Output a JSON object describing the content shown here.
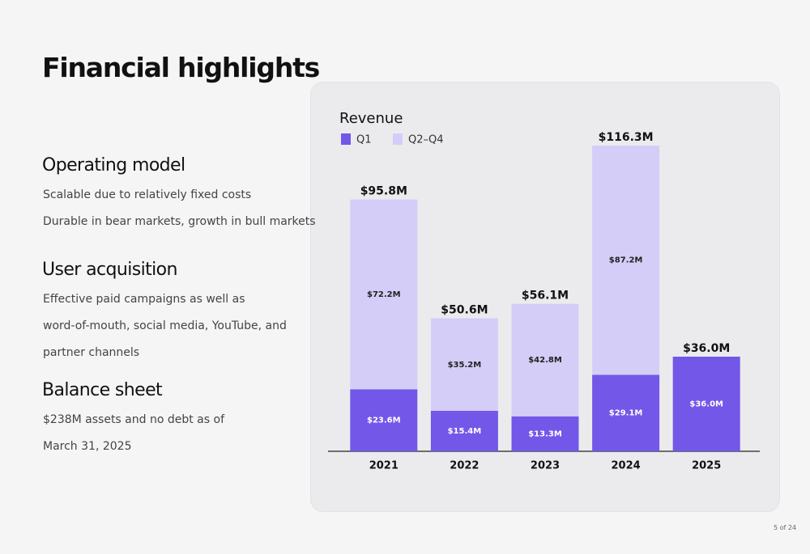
{
  "header": {
    "title": "Financial highlights"
  },
  "sections": [
    {
      "heading": "Operating model",
      "lines": [
        "Scalable due to relatively fixed costs",
        "Durable in bear markets, growth in bull markets"
      ]
    },
    {
      "heading": "User acquisition",
      "lines": [
        "Effective paid campaigns as well as",
        "word-of-mouth, social media, YouTube, and",
        "partner channels"
      ]
    },
    {
      "heading": "Balance sheet",
      "lines": [
        "$238M assets and no debt as of",
        "March 31, 2025"
      ]
    }
  ],
  "page_number": "5 of 24",
  "chart_data": {
    "type": "stacked_bar",
    "title": "Revenue",
    "categories": [
      "2021",
      "2022",
      "2023",
      "2024",
      "2025"
    ],
    "series": [
      {
        "name": "Q1",
        "color": "#7357e8",
        "values": [
          23.6,
          15.4,
          13.3,
          29.1,
          36.0
        ],
        "value_labels": [
          "$23.6M",
          "$15.4M",
          "$13.3M",
          "$29.1M",
          "$36.0M"
        ]
      },
      {
        "name": "Q2–Q4",
        "color": "#d4cdf7",
        "values": [
          72.2,
          35.2,
          42.8,
          87.2,
          null
        ],
        "value_labels": [
          "$72.2M",
          "$35.2M",
          "$42.8M",
          "$87.2M",
          null
        ]
      }
    ],
    "totals": {
      "values": [
        95.8,
        50.6,
        56.1,
        116.3,
        36.0
      ],
      "value_labels": [
        "$95.8M",
        "$50.6M",
        "$56.1M",
        "$116.3M",
        "$36.0M"
      ]
    },
    "ylim": [
      0,
      120
    ],
    "legend": "top-left"
  }
}
